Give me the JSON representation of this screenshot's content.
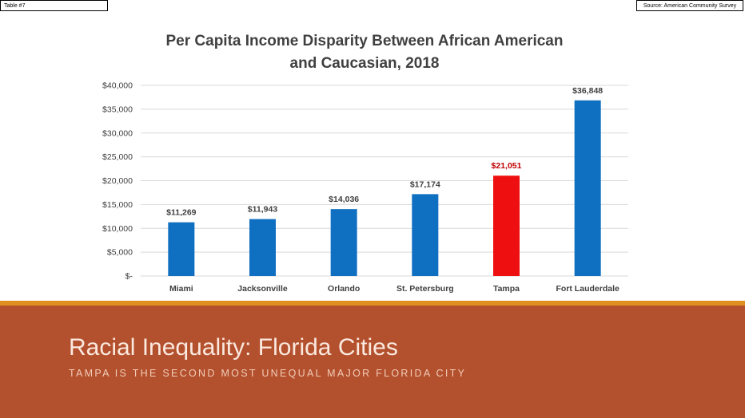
{
  "table_tag": "Table #7",
  "source_tag": "Source: American Community Survey",
  "slide": {
    "title": "Racial Inequality: Florida Cities",
    "subtitle": "TAMPA IS THE SECOND MOST UNEQUAL MAJOR FLORIDA CITY"
  },
  "colors": {
    "bar": "#0f6fc1",
    "highlight": "#ee1010",
    "label": "#404040",
    "highlight_label": "#c00000",
    "grid": "#d9d9d9",
    "band": "#b3502d",
    "stripe": "#e0901e"
  },
  "chart_data": {
    "type": "bar",
    "title_lines": [
      "Per Capita Income Disparity Between African American",
      "and Caucasian, 2018"
    ],
    "xlabel": "",
    "ylabel": "",
    "categories": [
      "Miami",
      "Jacksonville",
      "Orlando",
      "St. Petersburg",
      "Tampa",
      "Fort Lauderdale"
    ],
    "values": [
      11269,
      11943,
      14036,
      17174,
      21051,
      36848
    ],
    "value_labels": [
      "$11,269",
      "$11,943",
      "$14,036",
      "$17,174",
      "$21,051",
      "$36,848"
    ],
    "highlight_index": 4,
    "ylim": [
      0,
      40000
    ],
    "yticks": [
      0,
      5000,
      10000,
      15000,
      20000,
      25000,
      30000,
      35000,
      40000
    ],
    "ytick_labels": [
      "$-",
      "$5,000",
      "$10,000",
      "$15,000",
      "$20,000",
      "$25,000",
      "$30,000",
      "$35,000",
      "$40,000"
    ],
    "grid": true,
    "legend": false
  }
}
